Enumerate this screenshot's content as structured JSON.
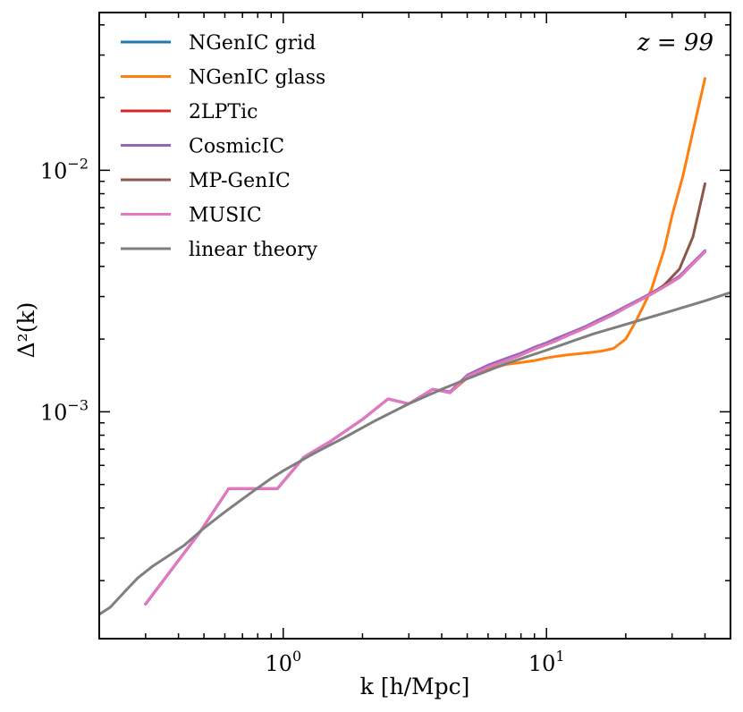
{
  "chart_data": {
    "type": "line",
    "title": "",
    "xlabel": "k [h/Mpc]",
    "ylabel": "Δ²(k)",
    "xscale": "log",
    "yscale": "log",
    "xlim": [
      0.2,
      50
    ],
    "ylim": [
      0.000115,
      0.045
    ],
    "grid": false,
    "legend_position": "top-left",
    "annotation": "z = 99",
    "x_ticks": [
      {
        "value": 1,
        "base": "10",
        "exp": "0"
      },
      {
        "value": 10,
        "base": "10",
        "exp": "1"
      }
    ],
    "y_ticks": [
      {
        "value": 0.001,
        "base": "10",
        "exp": "−3"
      },
      {
        "value": 0.01,
        "base": "10",
        "exp": "−2"
      }
    ],
    "series": [
      {
        "name": "NGenIC grid",
        "color": "#1f77b4",
        "x": [
          0.3,
          0.48,
          0.62,
          0.95,
          1.2,
          1.5,
          2.0,
          2.5,
          3.0,
          3.7,
          4.3,
          5.0,
          6.0,
          7.0,
          8.0,
          9.0,
          10.0,
          11.0,
          12.0,
          14.0,
          16.0,
          18.0,
          20.0,
          22.0,
          25.0,
          28.0,
          32.0,
          36.0,
          40.0
        ],
        "y": [
          0.00016,
          0.000315,
          0.00048,
          0.00048,
          0.00065,
          0.00075,
          0.00093,
          0.00113,
          0.00108,
          0.00124,
          0.0012,
          0.0014,
          0.00153,
          0.00163,
          0.00172,
          0.00182,
          0.0019,
          0.00198,
          0.00207,
          0.00222,
          0.00238,
          0.00253,
          0.0027,
          0.00285,
          0.00307,
          0.0033,
          0.0036,
          0.0041,
          0.0046
        ]
      },
      {
        "name": "NGenIC glass",
        "color": "#ff7f0e",
        "x": [
          4.3,
          5.0,
          6.0,
          7.0,
          8.0,
          9.0,
          10.0,
          11.0,
          12.0,
          14.0,
          16.0,
          18.0,
          20.0,
          22.0,
          25.0,
          28.0,
          30.0,
          33.0,
          36.0,
          40.0
        ],
        "y": [
          0.0012,
          0.00138,
          0.0015,
          0.00157,
          0.0016,
          0.00163,
          0.00167,
          0.0017,
          0.00172,
          0.00175,
          0.00178,
          0.00183,
          0.002,
          0.0024,
          0.0032,
          0.0047,
          0.0065,
          0.0095,
          0.0145,
          0.024
        ]
      },
      {
        "name": "2LPTic",
        "color": "#d62728",
        "x": [
          0.3,
          0.48,
          0.62,
          0.95,
          1.2,
          1.5,
          2.0,
          2.5,
          3.0,
          3.7,
          4.3,
          5.0,
          6.0,
          7.0,
          8.0,
          9.0,
          10.0,
          11.0,
          12.0,
          14.0,
          16.0,
          18.0,
          20.0,
          22.0,
          25.0,
          28.0,
          32.0,
          36.0,
          40.0
        ],
        "y": [
          0.00016,
          0.000315,
          0.00048,
          0.00048,
          0.00065,
          0.00075,
          0.00093,
          0.00113,
          0.00108,
          0.00124,
          0.0012,
          0.0014,
          0.00153,
          0.00163,
          0.00172,
          0.00182,
          0.0019,
          0.00198,
          0.00207,
          0.00222,
          0.00238,
          0.00253,
          0.0027,
          0.00285,
          0.00307,
          0.0033,
          0.0036,
          0.0041,
          0.0046
        ]
      },
      {
        "name": "CosmicIC",
        "color": "#9467bd",
        "x": [
          0.3,
          0.48,
          0.62,
          0.95,
          1.2,
          1.5,
          2.0,
          2.5,
          3.0,
          3.7,
          4.3,
          5.0,
          6.0,
          7.0,
          8.0,
          9.0,
          10.0,
          11.0,
          12.0,
          14.0,
          16.0,
          18.0,
          20.0,
          22.0,
          25.0,
          28.0,
          32.0,
          36.0,
          40.0
        ],
        "y": [
          0.00016,
          0.000315,
          0.00048,
          0.00048,
          0.00065,
          0.00075,
          0.00093,
          0.00113,
          0.00108,
          0.00124,
          0.00121,
          0.00142,
          0.00156,
          0.00166,
          0.00175,
          0.00185,
          0.00193,
          0.00202,
          0.0021,
          0.00225,
          0.00242,
          0.00257,
          0.00273,
          0.00288,
          0.0031,
          0.00333,
          0.00365,
          0.00415,
          0.00465
        ]
      },
      {
        "name": "MP-GenIC",
        "color": "#8c564b",
        "x": [
          4.3,
          5.0,
          6.0,
          7.0,
          8.0,
          9.0,
          10.0,
          11.0,
          12.0,
          14.0,
          16.0,
          18.0,
          20.0,
          22.0,
          25.0,
          28.0,
          32.0,
          36.0,
          40.0
        ],
        "y": [
          0.0012,
          0.0014,
          0.00153,
          0.00163,
          0.00172,
          0.00182,
          0.0019,
          0.00198,
          0.00207,
          0.00222,
          0.00238,
          0.00253,
          0.0027,
          0.00285,
          0.00307,
          0.00335,
          0.0039,
          0.0053,
          0.0088
        ]
      },
      {
        "name": "MUSIC",
        "color": "#e377c2",
        "x": [
          0.3,
          0.48,
          0.62,
          0.95,
          1.2,
          1.5,
          2.0,
          2.5,
          3.0,
          3.7,
          4.3,
          5.0,
          6.0,
          7.0,
          8.0,
          9.0,
          10.0,
          11.0,
          12.0,
          14.0,
          16.0,
          18.0,
          20.0,
          22.0,
          25.0,
          28.0,
          32.0,
          36.0,
          40.0
        ],
        "y": [
          0.00016,
          0.000315,
          0.00048,
          0.00048,
          0.00065,
          0.00075,
          0.00093,
          0.00113,
          0.00108,
          0.00124,
          0.0012,
          0.0014,
          0.00153,
          0.00163,
          0.00172,
          0.00182,
          0.0019,
          0.00198,
          0.00207,
          0.00222,
          0.00238,
          0.00253,
          0.0027,
          0.00285,
          0.00307,
          0.0033,
          0.0036,
          0.0041,
          0.0046
        ]
      },
      {
        "name": "linear theory",
        "color": "#7f7f7f",
        "x": [
          0.2,
          0.22,
          0.25,
          0.28,
          0.32,
          0.36,
          0.42,
          0.5,
          0.6,
          0.75,
          0.9,
          1.0,
          1.3,
          1.7,
          2.2,
          3.0,
          4.0,
          5.0,
          7.0,
          10.0,
          15.0,
          20.0,
          30.0,
          40.0,
          50.0
        ],
        "y": [
          0.000145,
          0.000155,
          0.00018,
          0.000205,
          0.00023,
          0.00025,
          0.00028,
          0.00033,
          0.000385,
          0.00046,
          0.00053,
          0.00057,
          0.00067,
          0.00078,
          0.00091,
          0.00108,
          0.00124,
          0.00137,
          0.00158,
          0.0018,
          0.0021,
          0.0023,
          0.00262,
          0.00288,
          0.00312
        ]
      }
    ]
  }
}
